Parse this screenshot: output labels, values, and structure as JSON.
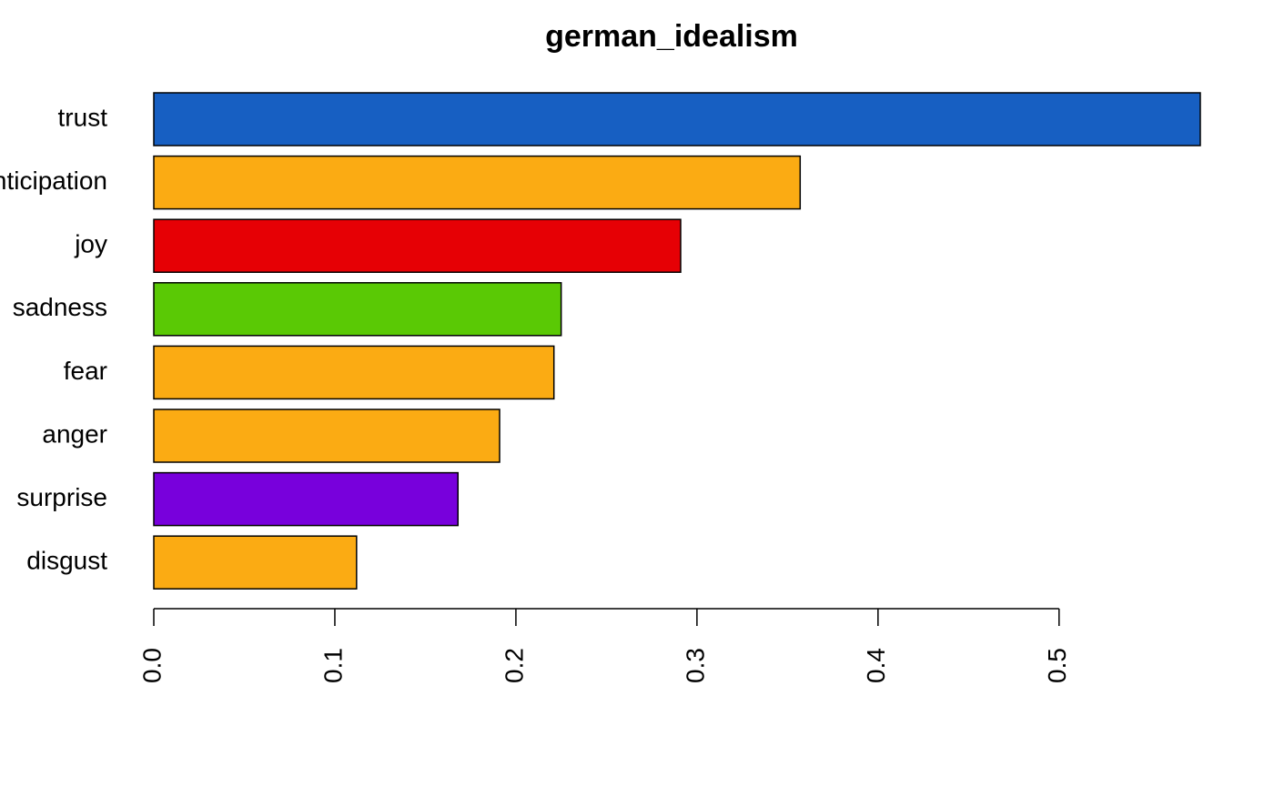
{
  "chart_data": {
    "type": "barh",
    "title": "german_idealism",
    "categories": [
      "trust",
      "anticipation",
      "joy",
      "sadness",
      "fear",
      "anger",
      "surprise",
      "disgust"
    ],
    "values": [
      0.578,
      0.357,
      0.291,
      0.225,
      0.221,
      0.191,
      0.168,
      0.112
    ],
    "colors": [
      "#175fc2",
      "#fbab13",
      "#e60005",
      "#5ac905",
      "#fbab13",
      "#fbab13",
      "#7800dc",
      "#fbab13"
    ],
    "xlim": [
      0,
      0.578
    ],
    "xticks": [
      {
        "value": 0,
        "label": "0.0"
      },
      0.1,
      0.2,
      0.3,
      0.4,
      0.5
    ]
  }
}
